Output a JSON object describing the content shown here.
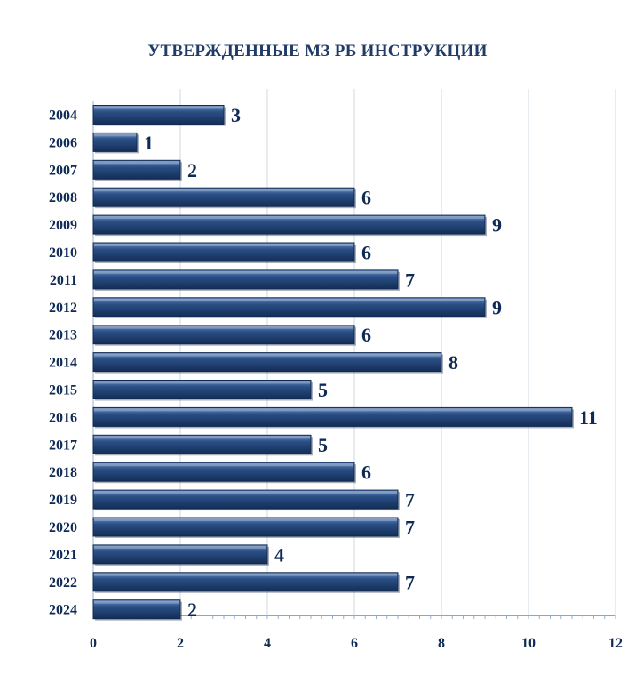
{
  "chart_data": {
    "type": "bar",
    "orientation": "horizontal",
    "title": "УТВЕРЖДЕННЫЕ МЗ РБ ИНСТРУКЦИИ",
    "categories": [
      "2004",
      "2006",
      "2007",
      "2008",
      "2009",
      "2010",
      "2011",
      "2012",
      "2013",
      "2014",
      "2015",
      "2016",
      "2017",
      "2018",
      "2019",
      "2020",
      "2021",
      "2022",
      "2024"
    ],
    "values": [
      3,
      1,
      2,
      6,
      9,
      6,
      7,
      9,
      6,
      8,
      5,
      11,
      5,
      6,
      7,
      7,
      4,
      7,
      2
    ],
    "xticks": [
      "0",
      "2",
      "4",
      "6",
      "8",
      "10",
      "12"
    ],
    "xlim": [
      0,
      12
    ],
    "xlabel": "",
    "ylabel": "",
    "grid": "vertical",
    "colors": {
      "bar": "#2a4f86",
      "bar_light": "#6d8fc0",
      "bar_dark": "#142d55",
      "text": "#0f2a55",
      "grid": "#cfd8e3"
    }
  }
}
